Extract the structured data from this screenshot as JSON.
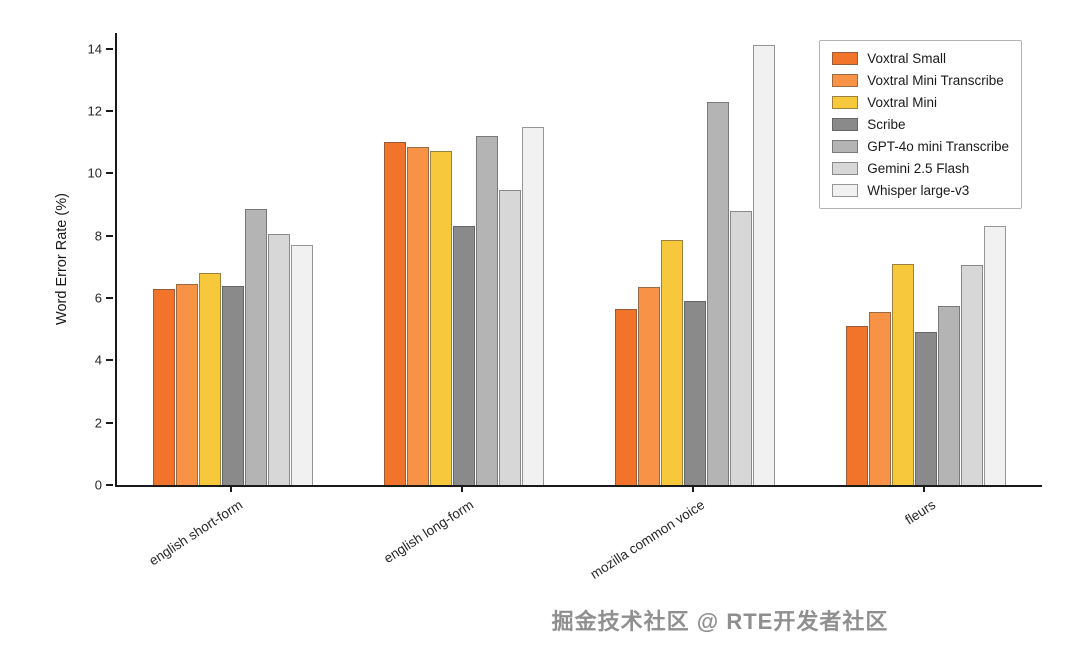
{
  "watermark": "掘金技术社区 @ RTE开发者社区",
  "chart_data": {
    "type": "bar",
    "title": "",
    "xlabel": "",
    "ylabel": "Word Error Rate (%)",
    "ylim": [
      0,
      14.5
    ],
    "yticks": [
      0,
      2,
      4,
      6,
      8,
      10,
      12,
      14
    ],
    "grid": false,
    "legend_position": "upper right",
    "categories": [
      "english short-form",
      "english long-form",
      "mozilla common voice",
      "fleurs"
    ],
    "series": [
      {
        "name": "Voxtral Small",
        "color": "#f1742a",
        "values": [
          6.3,
          11.0,
          5.65,
          5.1
        ]
      },
      {
        "name": "Voxtral Mini Transcribe",
        "color": "#f79246",
        "values": [
          6.45,
          10.85,
          6.35,
          5.55
        ]
      },
      {
        "name": "Voxtral Mini",
        "color": "#f8c83c",
        "values": [
          6.8,
          10.7,
          7.85,
          7.1
        ]
      },
      {
        "name": "Scribe",
        "color": "#8a8a8a",
        "values": [
          6.4,
          8.3,
          5.9,
          4.9
        ]
      },
      {
        "name": "GPT-4o mini Transcribe",
        "color": "#b4b4b4",
        "values": [
          8.85,
          11.2,
          12.3,
          5.75
        ]
      },
      {
        "name": "Gemini 2.5 Flash",
        "color": "#d7d7d7",
        "values": [
          8.05,
          9.45,
          8.8,
          7.05
        ]
      },
      {
        "name": "Whisper large-v3",
        "color": "#f1f1f1",
        "values": [
          7.7,
          11.5,
          14.1,
          8.3
        ]
      }
    ]
  }
}
